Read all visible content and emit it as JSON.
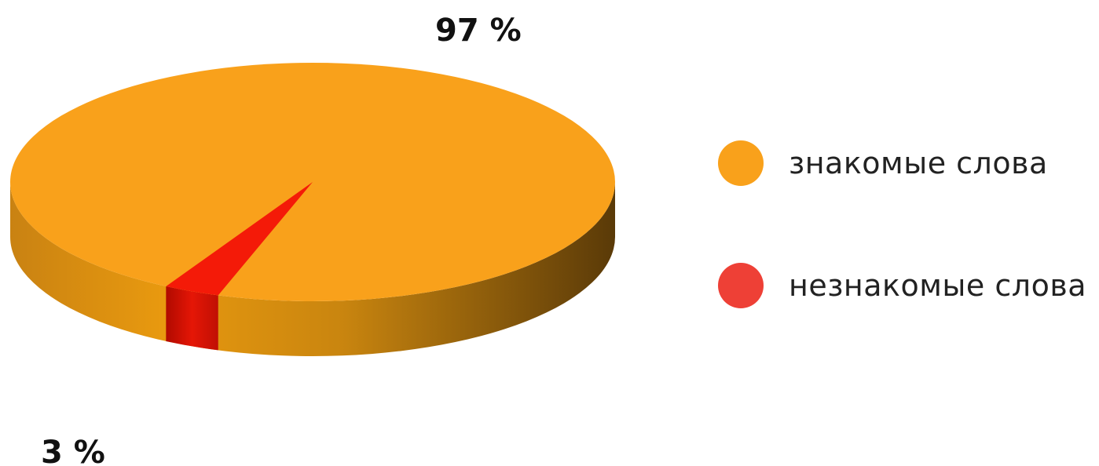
{
  "chart_data": {
    "type": "pie",
    "title": "",
    "categories": [
      "знакомые слова",
      "незнакомые слова"
    ],
    "values": [
      97,
      3
    ],
    "labels": [
      "97 %",
      "3 %"
    ],
    "colors": [
      "#F9A11B",
      "#F41A08"
    ],
    "legend_swatch_colors": [
      "#F9A11B",
      "#EE4036"
    ],
    "legend_position": "right",
    "three_d": true
  }
}
